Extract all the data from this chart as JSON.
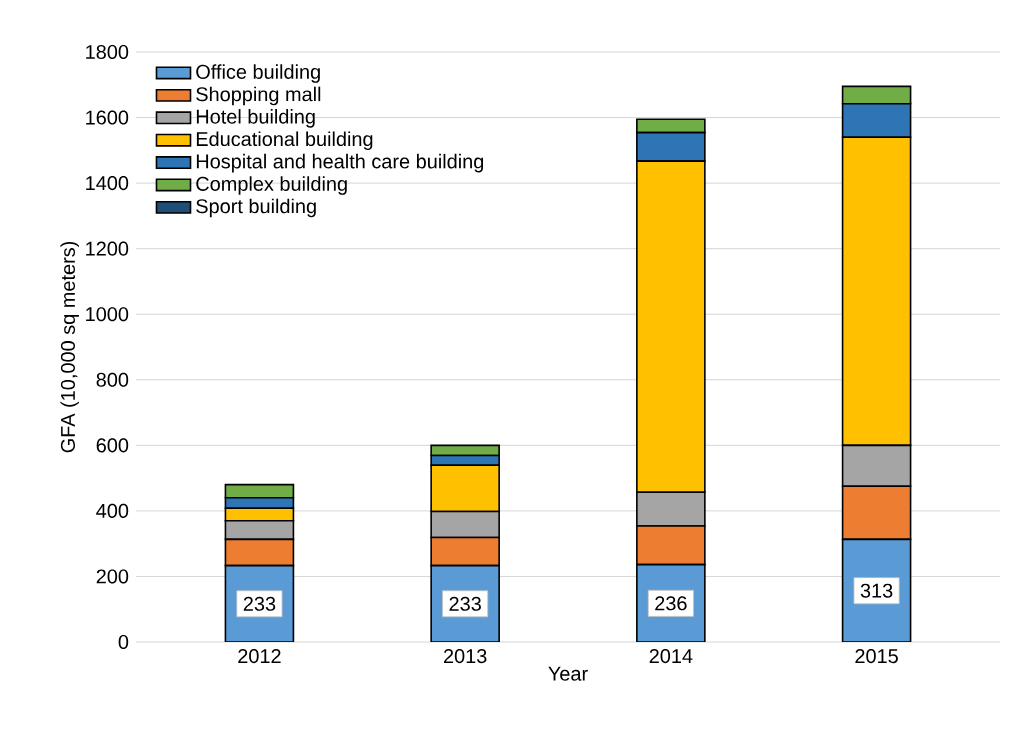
{
  "chart_data": {
    "type": "bar",
    "stacked": true,
    "xlabel": "Year",
    "ylabel": "GFA (10,000 sq meters)",
    "categories": [
      "2012",
      "2013",
      "2014",
      "2015"
    ],
    "series": [
      {
        "name": "Office building",
        "color": "#5b9bd5",
        "values": [
          233,
          233,
          236,
          313
        ],
        "value_labels": [
          "233",
          "233",
          "236",
          "313"
        ]
      },
      {
        "name": "Shopping mall",
        "color": "#ed7d31",
        "values": [
          80,
          86,
          118,
          162
        ]
      },
      {
        "name": "Hotel building",
        "color": "#a5a5a5",
        "values": [
          57,
          79,
          103,
          125
        ]
      },
      {
        "name": "Educational building",
        "color": "#ffc000",
        "values": [
          38,
          141,
          1010,
          940
        ]
      },
      {
        "name": "Hospital and health care  building",
        "color": "#2e75b6",
        "values": [
          32,
          30,
          87,
          102
        ]
      },
      {
        "name": "Complex building",
        "color": "#70ad47",
        "values": [
          40,
          31,
          41,
          53
        ]
      },
      {
        "name": "Sport building",
        "color": "#1f4e79",
        "values": [
          0,
          0,
          0,
          0
        ]
      }
    ],
    "ylim": [
      0,
      1800
    ],
    "yticks": [
      0,
      200,
      400,
      600,
      800,
      1000,
      1200,
      1400,
      1600,
      1800
    ],
    "grid": "y",
    "legend": "top left"
  }
}
